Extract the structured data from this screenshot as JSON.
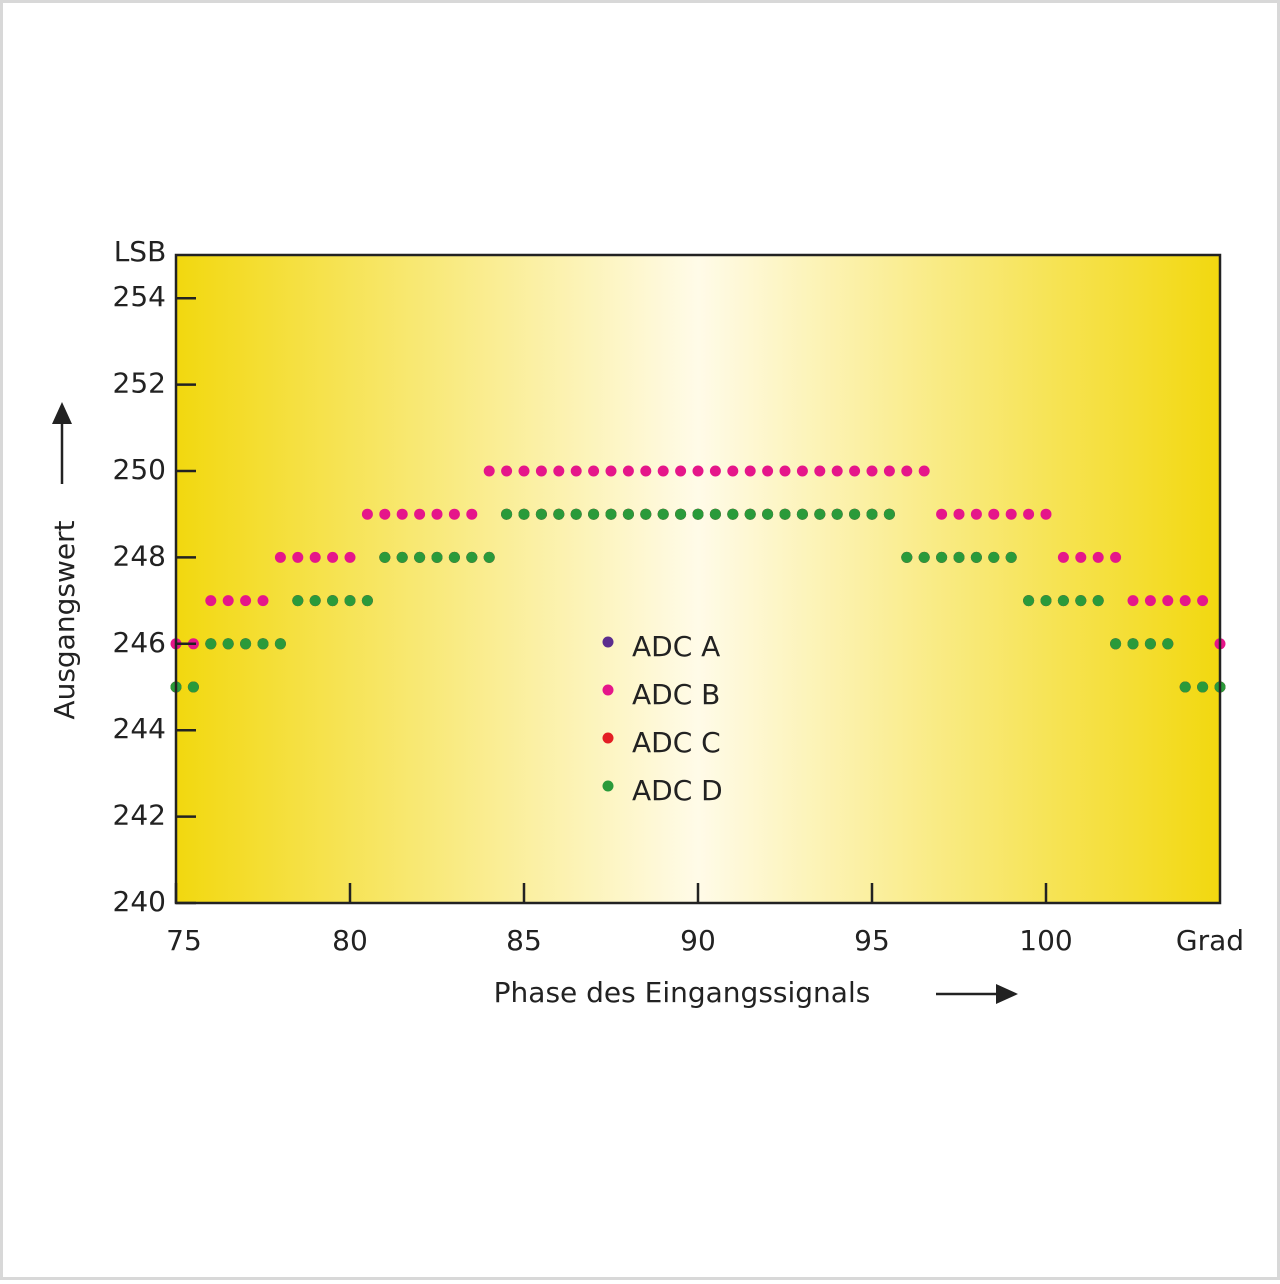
{
  "chart_data": {
    "type": "scatter",
    "y_unit": "LSB",
    "x_unit": "Grad",
    "xlabel": "Phase des Eingangssignals",
    "ylabel": "Ausgangswert",
    "x": [
      75,
      75.5,
      76,
      76.5,
      77,
      77.5,
      78,
      78.5,
      79,
      79.5,
      80,
      80.5,
      81,
      81.5,
      82,
      82.5,
      83,
      83.5,
      84,
      84.5,
      85,
      85.5,
      86,
      86.5,
      87,
      87.5,
      88,
      88.5,
      89,
      89.5,
      90,
      90.5,
      91,
      91.5,
      92,
      92.5,
      93,
      93.5,
      94,
      94.5,
      95,
      95.5,
      96,
      96.5,
      97,
      97.5,
      98,
      98.5,
      99,
      99.5,
      100,
      100.5,
      101,
      101.5,
      102,
      102.5,
      103,
      103.5,
      104,
      104.5,
      105
    ],
    "series": [
      {
        "name": "ADC A",
        "color": "#5b2d8e",
        "values": [
          245,
          245,
          246,
          246,
          246,
          246,
          246,
          247,
          247,
          247,
          247,
          247,
          248,
          248,
          248,
          248,
          248,
          248,
          248,
          249,
          249,
          249,
          249,
          249,
          249,
          249,
          249,
          249,
          249,
          249,
          249,
          249,
          249,
          249,
          249,
          249,
          249,
          249,
          249,
          249,
          249,
          249,
          248,
          248,
          248,
          248,
          248,
          248,
          248,
          247,
          247,
          247,
          247,
          247,
          246,
          246,
          246,
          246,
          245,
          245,
          245
        ]
      },
      {
        "name": "ADC B",
        "color": "#e5168a",
        "values": [
          246,
          246,
          247,
          247,
          247,
          247,
          248,
          248,
          248,
          248,
          248,
          249,
          249,
          249,
          249,
          249,
          249,
          249,
          250,
          250,
          250,
          250,
          250,
          250,
          250,
          250,
          250,
          250,
          250,
          250,
          250,
          250,
          250,
          250,
          250,
          250,
          250,
          250,
          250,
          250,
          250,
          250,
          250,
          250,
          249,
          249,
          249,
          249,
          249,
          249,
          249,
          248,
          248,
          248,
          248,
          247,
          247,
          247,
          247,
          247,
          246
        ]
      },
      {
        "name": "ADC C",
        "color": "#e31e24",
        "values": [
          245,
          245,
          246,
          246,
          246,
          246,
          246,
          247,
          247,
          247,
          247,
          247,
          248,
          248,
          248,
          248,
          248,
          248,
          248,
          249,
          249,
          249,
          249,
          249,
          249,
          249,
          249,
          249,
          249,
          249,
          249,
          249,
          249,
          249,
          249,
          249,
          249,
          249,
          249,
          249,
          249,
          249,
          248,
          248,
          248,
          248,
          248,
          248,
          248,
          247,
          247,
          247,
          247,
          247,
          246,
          246,
          246,
          246,
          245,
          245,
          245
        ]
      },
      {
        "name": "ADC D",
        "color": "#2a9a3a",
        "values": [
          245,
          245,
          246,
          246,
          246,
          246,
          246,
          247,
          247,
          247,
          247,
          247,
          248,
          248,
          248,
          248,
          248,
          248,
          248,
          249,
          249,
          249,
          249,
          249,
          249,
          249,
          249,
          249,
          249,
          249,
          249,
          249,
          249,
          249,
          249,
          249,
          249,
          249,
          249,
          249,
          249,
          249,
          248,
          248,
          248,
          248,
          248,
          248,
          248,
          247,
          247,
          247,
          247,
          247,
          246,
          246,
          246,
          246,
          245,
          245,
          245
        ]
      }
    ],
    "xlim": [
      75,
      105
    ],
    "xticks": [
      75,
      80,
      85,
      90,
      95,
      100
    ],
    "ylim": [
      240,
      255
    ],
    "yticks": [
      240,
      242,
      244,
      246,
      248,
      250,
      252,
      254
    ],
    "legend": "center"
  }
}
